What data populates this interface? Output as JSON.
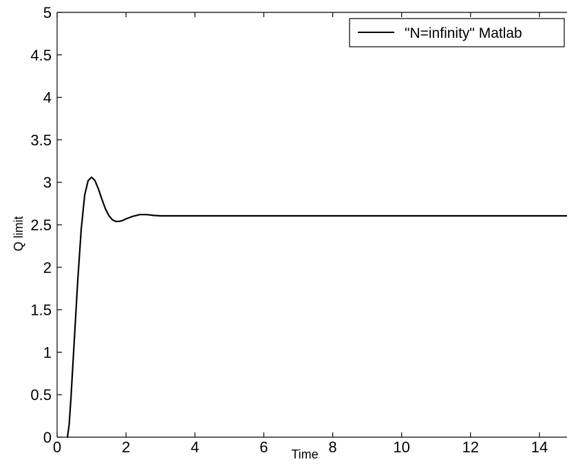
{
  "chart_data": {
    "type": "line",
    "title": "",
    "xlabel": "Time",
    "ylabel": "Q limit",
    "xlim": [
      0,
      14.8
    ],
    "ylim": [
      0,
      5
    ],
    "x_ticks": [
      0,
      2,
      4,
      6,
      8,
      10,
      12,
      14
    ],
    "x_tick_labels": [
      "0",
      "2",
      "4",
      "6",
      "8",
      "10",
      "12",
      "14"
    ],
    "y_ticks": [
      0,
      0.5,
      1,
      1.5,
      2,
      2.5,
      3,
      3.5,
      4,
      4.5,
      5
    ],
    "y_tick_labels": [
      "0",
      "0.5",
      "1",
      "1.5",
      "2",
      "2.5",
      "3",
      "3.5",
      "4",
      "4.5",
      "5"
    ],
    "grid": false,
    "legend_position": "top-right",
    "series": [
      {
        "name": "\"N=infinity\" Matlab",
        "color": "#000000",
        "x": [
          0.3,
          0.35,
          0.4,
          0.5,
          0.6,
          0.7,
          0.8,
          0.9,
          1.0,
          1.1,
          1.2,
          1.3,
          1.4,
          1.5,
          1.6,
          1.7,
          1.8,
          1.9,
          2.0,
          2.2,
          2.4,
          2.6,
          2.8,
          3.0,
          3.3,
          3.6,
          4.0,
          5.0,
          6.0,
          8.0,
          10.0,
          12.0,
          14.0,
          14.8
        ],
        "y": [
          0.0,
          0.15,
          0.45,
          1.15,
          1.85,
          2.45,
          2.85,
          3.02,
          3.06,
          3.02,
          2.92,
          2.8,
          2.69,
          2.61,
          2.56,
          2.54,
          2.54,
          2.55,
          2.57,
          2.6,
          2.62,
          2.62,
          2.61,
          2.605,
          2.605,
          2.605,
          2.605,
          2.605,
          2.605,
          2.605,
          2.605,
          2.605,
          2.605,
          2.605
        ]
      }
    ]
  }
}
